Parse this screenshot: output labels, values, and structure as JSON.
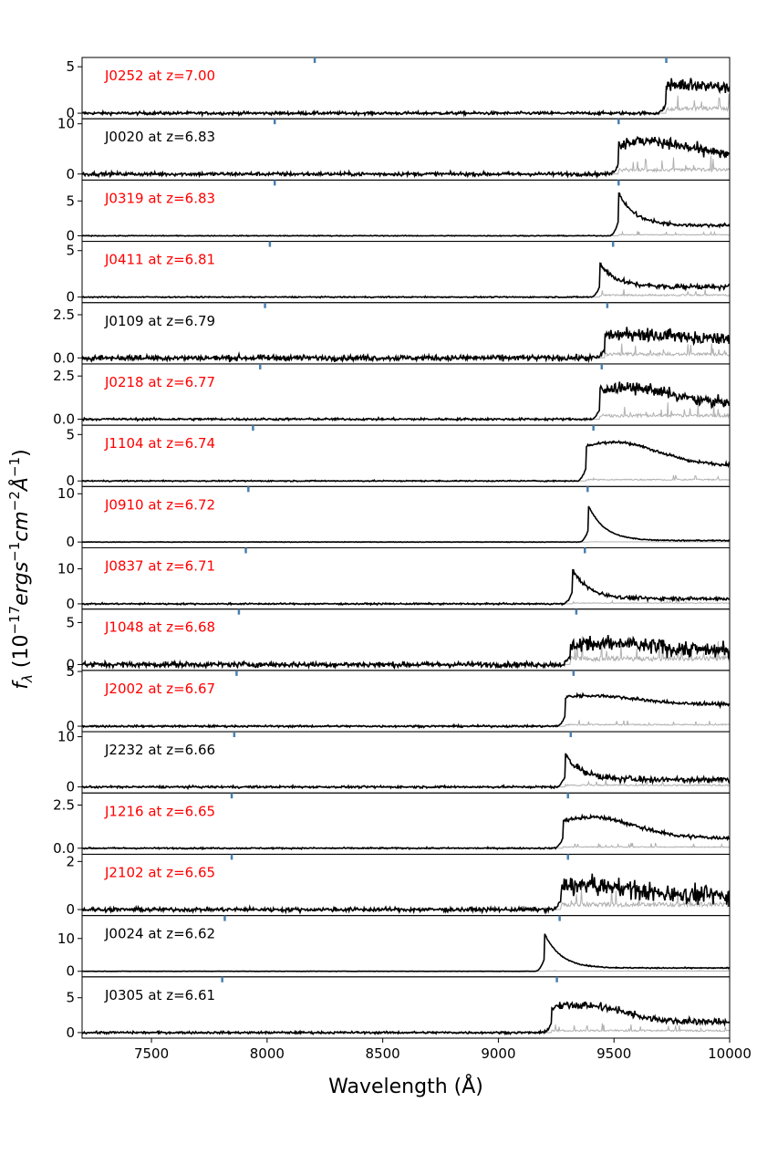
{
  "figure": {
    "xlabel": "Wavelength (Å)",
    "ylabel_main": "f",
    "ylabel_sub": "λ",
    "ylabel_units_prefix": " (10",
    "ylabel_exp1": "−17",
    "ylabel_mid1": "ergs",
    "ylabel_exp2": "−1",
    "ylabel_mid2": "cm",
    "ylabel_exp3": "−2",
    "ylabel_mid3": "Å",
    "ylabel_exp4": "−1",
    "ylabel_suffix": ")"
  },
  "chart_data": {
    "type": "line",
    "xlabel": "Wavelength (Å)",
    "ylabel": "f_λ (10^-17 ergs^-1 cm^-2 Å^-1)",
    "xlim": [
      7200,
      10000
    ],
    "xticks": [
      7500,
      8000,
      8500,
      9000,
      9500,
      10000
    ],
    "colors": {
      "spectrum": "#000000",
      "noise": "#b0b0b0",
      "marker": "#4a7fb0",
      "label_red": "#ff0000",
      "label_black": "#000000"
    },
    "panels": [
      {
        "label": "J0252 at z=7.00",
        "label_color": "red",
        "ylim": [
          -0.6,
          6.0
        ],
        "yticks": [
          0,
          5
        ],
        "ytick_labels": [
          "0",
          "5"
        ],
        "markers": [
          8206,
          9726
        ],
        "break": 9726,
        "peak": 3.0,
        "cont": 2.3,
        "profile": "broad",
        "noise_pre": 0.15,
        "noise_post": 0.7,
        "err": 0.7
      },
      {
        "label": "J0020 at z=6.83",
        "label_color": "black",
        "ylim": [
          -1.2,
          11.0
        ],
        "yticks": [
          0,
          10
        ],
        "ytick_labels": [
          "0",
          "10"
        ],
        "markers": [
          8033,
          9520
        ],
        "break": 9520,
        "peak": 6.5,
        "cont": 3.5,
        "profile": "broad",
        "noise_pre": 0.35,
        "noise_post": 1.0,
        "err": 1.2
      },
      {
        "label": "J0319 at z=6.83",
        "label_color": "red",
        "ylim": [
          -0.8,
          8.0
        ],
        "yticks": [
          0,
          5
        ],
        "ytick_labels": [
          "0",
          "5"
        ],
        "markers": [
          8033,
          9520
        ],
        "break": 9520,
        "peak": 6.2,
        "cont": 1.5,
        "profile": "peaked",
        "noise_pre": 0.05,
        "noise_post": 0.25,
        "err": 0.2
      },
      {
        "label": "J0411 at z=6.81",
        "label_color": "red",
        "ylim": [
          -0.6,
          6.0
        ],
        "yticks": [
          0,
          5
        ],
        "ytick_labels": [
          "0",
          "5"
        ],
        "markers": [
          8012,
          9496
        ],
        "break": 9440,
        "peak": 3.6,
        "cont": 1.1,
        "profile": "peaked",
        "noise_pre": 0.06,
        "noise_post": 0.25,
        "err": 0.3
      },
      {
        "label": "J0109 at z=6.79",
        "label_color": "black",
        "ylim": [
          -0.35,
          3.2
        ],
        "yticks": [
          0,
          2.5
        ],
        "ytick_labels": [
          "0.0",
          "2.5"
        ],
        "markers": [
          7991,
          9471
        ],
        "break": 9460,
        "peak": 1.4,
        "cont": 1.05,
        "profile": "broad",
        "noise_pre": 0.15,
        "noise_post": 0.35,
        "err": 0.3
      },
      {
        "label": "J0218 at z=6.77",
        "label_color": "red",
        "ylim": [
          -0.35,
          3.2
        ],
        "yticks": [
          0,
          2.5
        ],
        "ytick_labels": [
          "0.0",
          "2.5"
        ],
        "markers": [
          7970,
          9447
        ],
        "break": 9440,
        "peak": 1.8,
        "cont": 0.9,
        "profile": "broad",
        "noise_pre": 0.06,
        "noise_post": 0.3,
        "err": 0.3
      },
      {
        "label": "J1104 at z=6.74",
        "label_color": "red",
        "ylim": [
          -0.6,
          6.0
        ],
        "yticks": [
          0,
          5
        ],
        "ytick_labels": [
          "0",
          "5"
        ],
        "markers": [
          7939,
          9411
        ],
        "break": 9380,
        "peak": 4.2,
        "cont": 1.7,
        "profile": "broad",
        "noise_pre": 0.06,
        "noise_post": 0.15,
        "err": 0.2
      },
      {
        "label": "J0910 at z=6.72",
        "label_color": "red",
        "ylim": [
          -1.2,
          11.5
        ],
        "yticks": [
          0,
          10
        ],
        "ytick_labels": [
          "0",
          "10"
        ],
        "markers": [
          7919,
          9386
        ],
        "break": 9390,
        "peak": 7.5,
        "cont": 0.3,
        "profile": "peaked",
        "noise_pre": 0.05,
        "noise_post": 0.1,
        "err": 0.05
      },
      {
        "label": "J0837 at z=6.71",
        "label_color": "red",
        "ylim": [
          -1.5,
          16.0
        ],
        "yticks": [
          0,
          10
        ],
        "ytick_labels": [
          "0",
          "10"
        ],
        "markers": [
          7908,
          9374
        ],
        "break": 9320,
        "peak": 10.0,
        "cont": 1.5,
        "profile": "peaked",
        "noise_pre": 0.2,
        "noise_post": 0.5,
        "err": 0.3
      },
      {
        "label": "J1048 at z=6.68",
        "label_color": "red",
        "ylim": [
          -0.7,
          6.6
        ],
        "yticks": [
          0,
          5
        ],
        "ytick_labels": [
          "0",
          "5"
        ],
        "markers": [
          7878,
          9337
        ],
        "break": 9310,
        "peak": 2.5,
        "cont": 1.8,
        "profile": "broad",
        "noise_pre": 0.3,
        "noise_post": 0.9,
        "err": 1.0
      },
      {
        "label": "J2002 at z=6.67",
        "label_color": "red",
        "ylim": [
          -0.5,
          5.1
        ],
        "yticks": [
          0,
          5
        ],
        "ytick_labels": [
          "0",
          "5"
        ],
        "markers": [
          7868,
          9325
        ],
        "break": 9290,
        "peak": 2.8,
        "cont": 2.0,
        "profile": "broad",
        "noise_pre": 0.08,
        "noise_post": 0.15,
        "err": 0.2
      },
      {
        "label": "J2232 at z=6.66",
        "label_color": "black",
        "ylim": [
          -1.2,
          11.0
        ],
        "yticks": [
          0,
          10
        ],
        "ytick_labels": [
          "0",
          "10"
        ],
        "markers": [
          7858,
          9313
        ],
        "break": 9290,
        "peak": 6.5,
        "cont": 1.5,
        "profile": "peaked",
        "noise_pre": 0.2,
        "noise_post": 0.6,
        "err": 0.5
      },
      {
        "label": "J1216 at z=6.65",
        "label_color": "red",
        "ylim": [
          -0.35,
          3.2
        ],
        "yticks": [
          0,
          2.5
        ],
        "ytick_labels": [
          "0.0",
          "2.5"
        ],
        "markers": [
          7847,
          9301
        ],
        "break": 9280,
        "peak": 1.8,
        "cont": 0.6,
        "profile": "broad",
        "noise_pre": 0.04,
        "noise_post": 0.1,
        "err": 0.1
      },
      {
        "label": "J2102 at z=6.65",
        "label_color": "red",
        "ylim": [
          -0.25,
          2.3
        ],
        "yticks": [
          0,
          2
        ],
        "ytick_labels": [
          "0",
          "2"
        ],
        "markers": [
          7847,
          9301
        ],
        "break": 9270,
        "peak": 1.0,
        "cont": 0.6,
        "profile": "broad",
        "noise_pre": 0.08,
        "noise_post": 0.35,
        "err": 0.3
      },
      {
        "label": "J0024 at z=6.62",
        "label_color": "black",
        "ylim": [
          -1.7,
          17.0
        ],
        "yticks": [
          0,
          10
        ],
        "ytick_labels": [
          "0",
          "10"
        ],
        "markers": [
          7817,
          9265
        ],
        "break": 9200,
        "peak": 11.5,
        "cont": 1.0,
        "profile": "peaked",
        "noise_pre": 0.05,
        "noise_post": 0.15,
        "err": 0.1
      },
      {
        "label": "J0305 at z=6.61",
        "label_color": "black",
        "ylim": [
          -0.8,
          8.0
        ],
        "yticks": [
          0,
          5
        ],
        "ytick_labels": [
          "0",
          "5"
        ],
        "markers": [
          7806,
          9253
        ],
        "break": 9230,
        "peak": 4.0,
        "cont": 1.5,
        "profile": "broad",
        "noise_pre": 0.15,
        "noise_post": 0.5,
        "err": 0.4
      }
    ]
  }
}
